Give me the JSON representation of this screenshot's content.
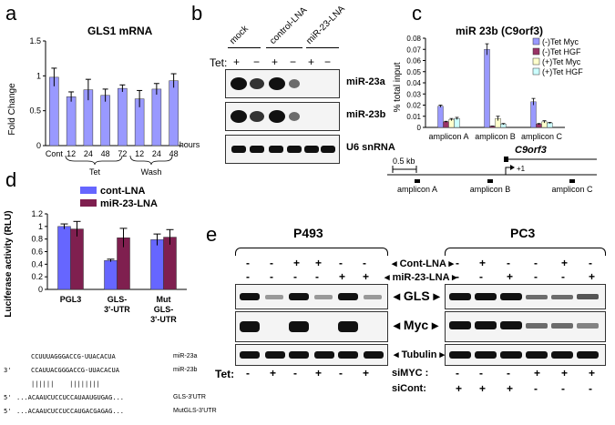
{
  "panels": {
    "a": {
      "label": "a",
      "chart_data": {
        "type": "bar",
        "title": "GLS1 mRNA",
        "ylabel": "Fold Change",
        "ylim": [
          0,
          1.5
        ],
        "yticks": [
          "0",
          "0.5",
          "1",
          "1.5"
        ],
        "categories": [
          "Cont",
          "12",
          "24",
          "48",
          "72",
          "12",
          "24",
          "48"
        ],
        "values": [
          0.98,
          0.7,
          0.8,
          0.72,
          0.82,
          0.67,
          0.81,
          0.93
        ],
        "errors": [
          0.13,
          0.07,
          0.15,
          0.09,
          0.05,
          0.12,
          0.08,
          0.1
        ],
        "bar_color": "#9999ff",
        "x_unit": "hours",
        "groups": [
          "Tet",
          "Wash"
        ]
      }
    },
    "b": {
      "label": "b",
      "lanes": [
        "mock",
        "control-LNA",
        "miR-23-LNA"
      ],
      "tet_label": "Tet:",
      "tet_signs": [
        "+",
        "−",
        "+",
        "−",
        "+",
        "−"
      ],
      "blots": [
        "miR-23a",
        "miR-23b",
        "U6 snRNA"
      ]
    },
    "c": {
      "label": "c",
      "chart_data": {
        "type": "bar",
        "title": "miR 23b (C9orf3)",
        "ylabel": "% total input",
        "ylim": [
          0,
          0.08
        ],
        "yticks": [
          "0",
          "0.01",
          "0.02",
          "0.03",
          "0.04",
          "0.05",
          "0.06",
          "0.07",
          "0.08"
        ],
        "categories": [
          "amplicon A",
          "amplicon B",
          "amplicon C"
        ],
        "series": [
          {
            "name": "(-)Tet Myc",
            "color": "#9999ff",
            "values": [
              0.019,
              0.07,
              0.023
            ],
            "errors": [
              0.001,
              0.005,
              0.003
            ]
          },
          {
            "name": "(-)Tet HGF",
            "color": "#993366",
            "values": [
              0.005,
              0.001,
              0.003
            ],
            "errors": [
              0.0005,
              0.0002,
              0.0005
            ]
          },
          {
            "name": "(+)Tet Myc",
            "color": "#ffffcc",
            "values": [
              0.007,
              0.008,
              0.005
            ],
            "errors": [
              0.001,
              0.002,
              0.001
            ]
          },
          {
            "name": "(+)Tet HGF",
            "color": "#ccffff",
            "values": [
              0.008,
              0.003,
              0.004
            ],
            "errors": [
              0.001,
              0.0005,
              0.0005
            ]
          }
        ],
        "legend": "top-right"
      },
      "gene": "C9orf3",
      "scale": "0.5 kb",
      "tss": "+1",
      "amplicons": [
        "amplicon A",
        "amplicon B",
        "amplicon C"
      ]
    },
    "d": {
      "label": "d",
      "chart_data": {
        "type": "bar",
        "ylabel": "Luciferase activity (RLU)",
        "ylim": [
          0,
          1.2
        ],
        "yticks": [
          "0",
          "0.2",
          "0.4",
          "0.6",
          "0.8",
          "1",
          "1.2"
        ],
        "categories": [
          "PGL3",
          "GLS-\n3'-UTR",
          "Mut\nGLS-\n3'-UTR"
        ],
        "series": [
          {
            "name": "cont-LNA",
            "color": "#6666ff",
            "values": [
              1.0,
              0.46,
              0.79
            ],
            "errors": [
              0.04,
              0.02,
              0.09
            ]
          },
          {
            "name": "miR-23-LNA",
            "color": "#7f1f4f",
            "values": [
              0.96,
              0.82,
              0.83
            ],
            "errors": [
              0.12,
              0.15,
              0.12
            ]
          }
        ],
        "legend": "top"
      },
      "seq_rows": [
        {
          "prefix": "",
          "seq": "CCUUUAGGGACCG-UUACACUA",
          "name": "miR-23a"
        },
        {
          "prefix": "3'",
          "seq": "CCAUUACGGGACCG-UUACACUA",
          "name": "miR-23b"
        },
        {
          "prefix": "",
          "seq": "||||||    ||||||||",
          "name": ""
        },
        {
          "prefix": "5'",
          "seq": "...ACAAUCUCCUCCAUAAUGUGAG...",
          "name": "GLS-3'UTR"
        },
        {
          "prefix": "5'",
          "seq": "...ACAAUCUCCUCCAUGACGAGAG...",
          "name": "MutGLS-3'UTR"
        }
      ]
    },
    "e": {
      "label": "e",
      "cell_lines": [
        "P493",
        "PC3"
      ],
      "row_labels": [
        "Cont-LNA",
        "miR-23-LNA"
      ],
      "p493_cont": [
        "-",
        "-",
        "+",
        "+",
        "-",
        "-"
      ],
      "p493_mir": [
        "-",
        "-",
        "-",
        "-",
        "+",
        "+"
      ],
      "pc3_cont": [
        "-",
        "+",
        "-",
        "-",
        "+",
        "-"
      ],
      "pc3_mir": [
        "-",
        "-",
        "+",
        "-",
        "-",
        "+"
      ],
      "blots": [
        "GLS",
        "Myc",
        "Tubulin"
      ],
      "tet_label": "Tet:",
      "tet_signs": [
        "-",
        "+",
        "-",
        "+",
        "-",
        "+"
      ],
      "simyc_label": "siMYC :",
      "simyc_signs": [
        "-",
        "-",
        "-",
        "+",
        "+",
        "+"
      ],
      "sicont_label": "siCont:",
      "sicont_signs": [
        "+",
        "+",
        "+",
        "-",
        "-",
        "-"
      ]
    }
  }
}
